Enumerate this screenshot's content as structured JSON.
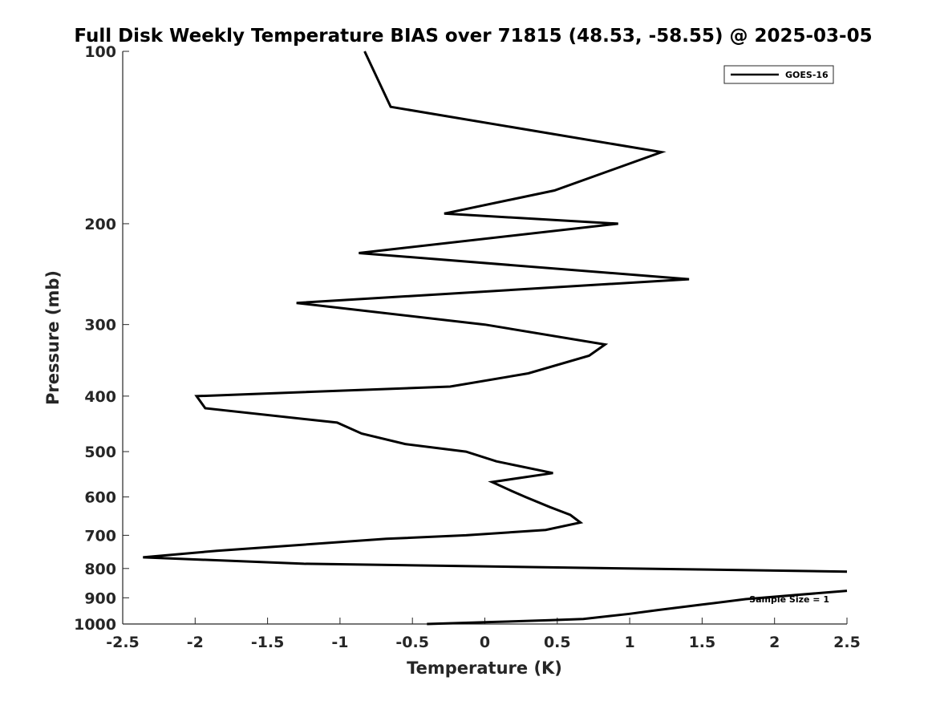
{
  "chart_data": {
    "type": "line",
    "title": "Full Disk Weekly Temperature BIAS over 71815 (48.53, -58.55) @ 2025-03-05",
    "xlabel": "Temperature (K)",
    "ylabel": "Pressure (mb)",
    "xlim": [
      -2.5,
      2.5
    ],
    "ylim": [
      1000,
      100
    ],
    "y_scale": "log",
    "y_reversed": true,
    "grid": false,
    "x_ticks": [
      -2.5,
      -2,
      -1.5,
      -1,
      -0.5,
      0,
      0.5,
      1,
      1.5,
      2,
      2.5
    ],
    "x_tick_labels": [
      "-2.5",
      "-2",
      "-1.5",
      "-1",
      "-0.5",
      "0",
      "0.5",
      "1",
      "1.5",
      "2",
      "2.5"
    ],
    "y_ticks": [
      100,
      200,
      300,
      400,
      500,
      600,
      700,
      800,
      900,
      1000
    ],
    "y_tick_labels": [
      "100",
      "200",
      "300",
      "400",
      "500",
      "600",
      "700",
      "800",
      "900",
      "1000"
    ],
    "legend_placement": "top-right",
    "annotation": "Sample Size = 1",
    "series": [
      {
        "name": "GOES-16",
        "color": "#000000",
        "points": [
          {
            "x": -0.83,
            "p": 100
          },
          {
            "x": -0.65,
            "p": 125
          },
          {
            "x": 1.22,
            "p": 150
          },
          {
            "x": 0.48,
            "p": 175
          },
          {
            "x": -0.28,
            "p": 192
          },
          {
            "x": 0.92,
            "p": 200
          },
          {
            "x": -0.87,
            "p": 225
          },
          {
            "x": 1.41,
            "p": 250
          },
          {
            "x": -1.3,
            "p": 275
          },
          {
            "x": 0.0,
            "p": 300
          },
          {
            "x": 0.83,
            "p": 325
          },
          {
            "x": 0.72,
            "p": 340
          },
          {
            "x": 0.3,
            "p": 365
          },
          {
            "x": -0.24,
            "p": 385
          },
          {
            "x": -1.99,
            "p": 400
          },
          {
            "x": -1.93,
            "p": 420
          },
          {
            "x": -1.02,
            "p": 445
          },
          {
            "x": -0.85,
            "p": 465
          },
          {
            "x": -0.55,
            "p": 485
          },
          {
            "x": -0.13,
            "p": 500
          },
          {
            "x": 0.08,
            "p": 520
          },
          {
            "x": 0.47,
            "p": 545
          },
          {
            "x": 0.05,
            "p": 565
          },
          {
            "x": 0.18,
            "p": 585
          },
          {
            "x": 0.28,
            "p": 600
          },
          {
            "x": 0.45,
            "p": 625
          },
          {
            "x": 0.59,
            "p": 645
          },
          {
            "x": 0.66,
            "p": 665
          },
          {
            "x": 0.42,
            "p": 685
          },
          {
            "x": -0.13,
            "p": 700
          },
          {
            "x": -0.68,
            "p": 710
          },
          {
            "x": -1.85,
            "p": 745
          },
          {
            "x": -2.36,
            "p": 765
          },
          {
            "x": -1.25,
            "p": 785
          },
          {
            "x": 2.5,
            "p": 810
          }
        ]
      },
      {
        "name": "",
        "color": "#000000",
        "points": [
          {
            "x": 2.5,
            "p": 875
          },
          {
            "x": 1.8,
            "p": 905
          },
          {
            "x": 1.5,
            "p": 925
          },
          {
            "x": 1.2,
            "p": 945
          },
          {
            "x": 1.0,
            "p": 960
          },
          {
            "x": 0.68,
            "p": 980
          },
          {
            "x": 0.45,
            "p": 985
          },
          {
            "x": 0.05,
            "p": 992
          },
          {
            "x": -0.4,
            "p": 1000
          }
        ]
      }
    ]
  }
}
